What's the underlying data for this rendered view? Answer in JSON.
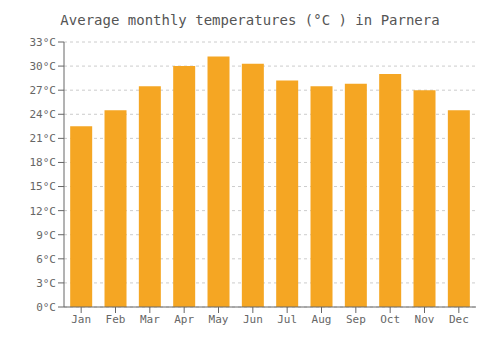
{
  "chart_data": {
    "type": "bar",
    "title": "Average monthly temperatures (°C ) in Parnera",
    "categories": [
      "Jan",
      "Feb",
      "Mar",
      "Apr",
      "May",
      "Jun",
      "Jul",
      "Aug",
      "Sep",
      "Oct",
      "Nov",
      "Dec"
    ],
    "values": [
      22.5,
      24.5,
      27.5,
      30.0,
      31.2,
      30.3,
      28.2,
      27.5,
      27.8,
      29.0,
      27.0,
      24.5
    ],
    "color": "#F5A623",
    "ylim": [
      0,
      33
    ],
    "yticks": [
      {
        "value": 0,
        "label": "0°C"
      },
      {
        "value": 3,
        "label": "3°C"
      },
      {
        "value": 6,
        "label": "6°C"
      },
      {
        "value": 9,
        "label": "9°C"
      },
      {
        "value": 12,
        "label": "12°C"
      },
      {
        "value": 15,
        "label": "15°C"
      },
      {
        "value": 18,
        "label": "18°C"
      },
      {
        "value": 21,
        "label": "21°C"
      },
      {
        "value": 24,
        "label": "24°C"
      },
      {
        "value": 27,
        "label": "27°C"
      },
      {
        "value": 30,
        "label": "30°C"
      },
      {
        "value": 33,
        "label": "33°C"
      }
    ],
    "grid": true
  }
}
